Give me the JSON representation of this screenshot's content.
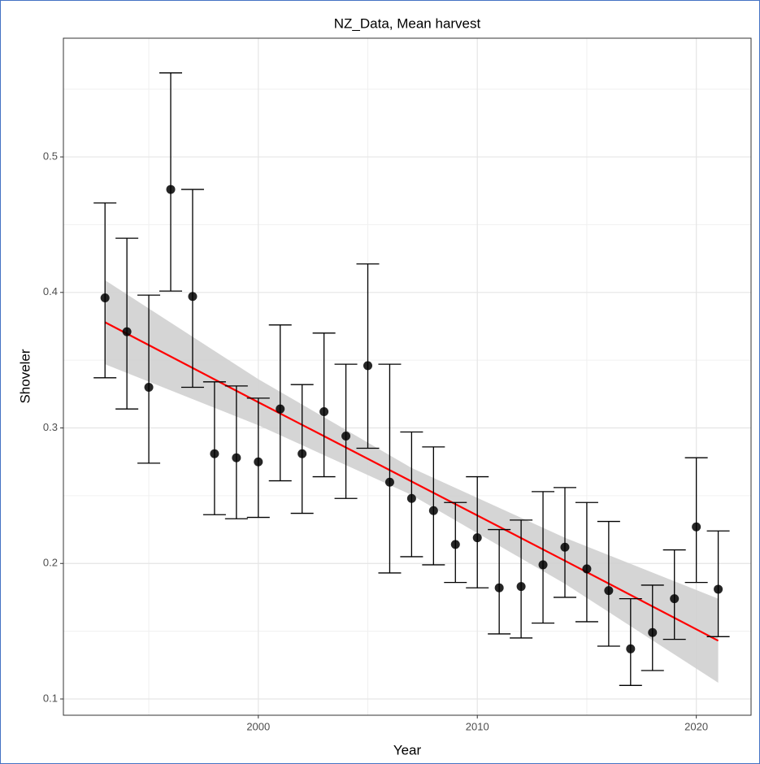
{
  "chart_data": {
    "type": "scatter",
    "title": "NZ_Data, Mean harvest",
    "xlabel": "Year",
    "ylabel": "Shoveler",
    "x": [
      1993,
      1994,
      1995,
      1996,
      1997,
      1998,
      1999,
      2000,
      2001,
      2002,
      2003,
      2004,
      2005,
      2006,
      2007,
      2008,
      2009,
      2010,
      2011,
      2012,
      2013,
      2014,
      2015,
      2016,
      2017,
      2018,
      2019,
      2020,
      2021
    ],
    "series": [
      {
        "color": "#000000",
        "values": [
          0.396,
          0.371,
          0.33,
          0.476,
          0.397,
          0.281,
          0.278,
          0.275,
          0.314,
          0.281,
          0.312,
          0.294,
          0.346,
          0.26,
          0.248,
          0.239,
          0.214,
          0.219,
          0.182,
          0.183,
          0.199,
          0.212,
          0.196,
          0.18,
          0.137,
          0.149,
          0.174,
          0.227,
          0.181
        ],
        "lower": [
          0.337,
          0.314,
          0.274,
          0.401,
          0.33,
          0.236,
          0.233,
          0.234,
          0.261,
          0.237,
          0.264,
          0.248,
          0.285,
          0.193,
          0.205,
          0.199,
          0.186,
          0.182,
          0.148,
          0.145,
          0.156,
          0.175,
          0.157,
          0.139,
          0.11,
          0.121,
          0.144,
          0.186,
          0.146
        ],
        "upper": [
          0.466,
          0.44,
          0.398,
          0.562,
          0.476,
          0.334,
          0.331,
          0.322,
          0.376,
          0.332,
          0.37,
          0.347,
          0.421,
          0.347,
          0.297,
          0.286,
          0.245,
          0.264,
          0.225,
          0.232,
          0.253,
          0.256,
          0.245,
          0.231,
          0.174,
          0.184,
          0.21,
          0.278,
          0.224
        ]
      }
    ],
    "fit": {
      "color": "#ff0000",
      "band_color": "#d0d0d0",
      "x": [
        1993,
        2000,
        2007,
        2014,
        2021
      ],
      "values": [
        0.378,
        0.319,
        0.2605,
        0.202,
        0.143
      ],
      "lower": [
        0.347,
        0.302,
        0.2505,
        0.185,
        0.112
      ],
      "upper": [
        0.409,
        0.336,
        0.2705,
        0.219,
        0.174
      ]
    },
    "xlim": [
      1991.1,
      2022.5
    ],
    "ylim": [
      0.088,
      0.5876
    ],
    "xticks": [
      2000,
      2010,
      2020
    ],
    "yticks": [
      0.1,
      0.2,
      0.3,
      0.4,
      0.5
    ],
    "grid": true,
    "minor_grid": true
  }
}
